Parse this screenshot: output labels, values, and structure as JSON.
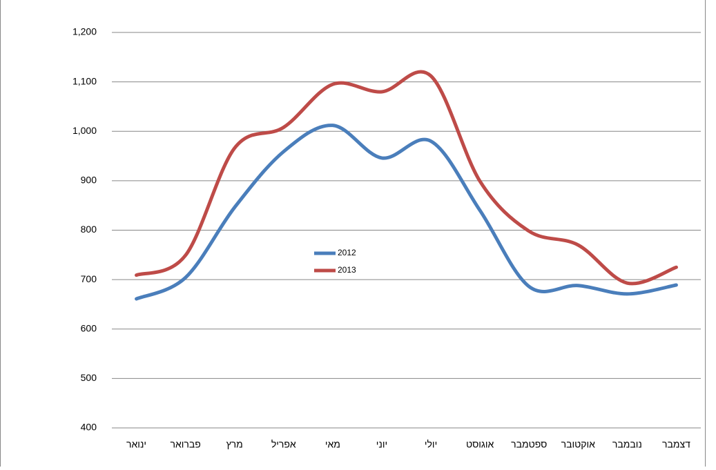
{
  "chart_data": {
    "type": "line",
    "categories": [
      "ינואר",
      "פברואר",
      "מרץ",
      "אפריל",
      "מאי",
      "יוני",
      "יולי",
      "אוגוסט",
      "ספטמבר",
      "אוקטובר",
      "נובמבר",
      "דצמבר"
    ],
    "series": [
      {
        "name": "2012",
        "color": "#4a7ebb",
        "values": [
          661,
          704,
          846,
          959,
          1012,
          946,
          980,
          840,
          686,
          688,
          671,
          689
        ]
      },
      {
        "name": "2013",
        "color": "#be4b48",
        "values": [
          709,
          749,
          966,
          1008,
          1095,
          1080,
          1112,
          899,
          798,
          770,
          693,
          725
        ]
      }
    ],
    "ylim": [
      400,
      1200
    ],
    "yticks": [
      400,
      500,
      600,
      700,
      800,
      900,
      {
        "value": 1000,
        "label": "1,000"
      },
      {
        "value": 1100,
        "label": "1,100"
      },
      {
        "value": 1200,
        "label": "1,200"
      }
    ],
    "grid": true,
    "smooth": true
  }
}
